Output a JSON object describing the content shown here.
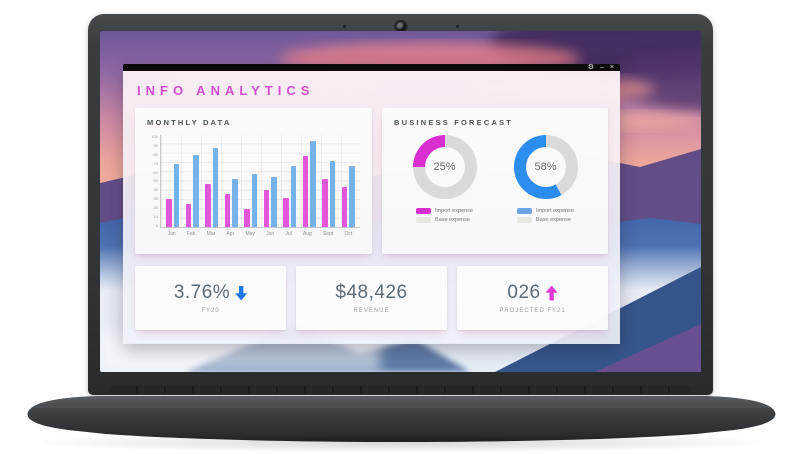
{
  "window": {
    "app_title": "INFO ANALYTICS",
    "title_bar": {
      "controls": [
        {
          "name": "settings",
          "glyph": "⚙"
        },
        {
          "name": "minimize",
          "glyph": "–"
        },
        {
          "name": "close",
          "glyph": "×"
        }
      ]
    }
  },
  "colors": {
    "accent_pink": "#d44fd0",
    "bar_pink": "#e257da",
    "bar_blue": "#74b2e9",
    "donut_pink": "#d92ed0",
    "donut_blue": "#2b8df0",
    "donut_track": "#dadada",
    "legend_gray": "#e9e7e1",
    "arrow_blue": "#2277e8",
    "arrow_pink": "#e03ad5",
    "stat_text": "#5c6b78"
  },
  "chart_data": [
    {
      "type": "bar",
      "title": "MONTHLY DATA",
      "categories": [
        "Jan",
        "Feb",
        "Mar",
        "Apr",
        "May",
        "Jun",
        "Jul",
        "Aug",
        "Sept",
        "Oct"
      ],
      "series": [
        {
          "name": "pink",
          "color": "#e257da",
          "values": [
            30,
            25,
            47,
            36,
            20,
            40,
            32,
            77,
            52,
            43
          ]
        },
        {
          "name": "blue",
          "color": "#74b2e9",
          "values": [
            68,
            78,
            86,
            52,
            58,
            54,
            66,
            93,
            72,
            66
          ]
        }
      ],
      "xlabel": "",
      "ylabel": "",
      "ylim": [
        0,
        100
      ],
      "yticks": [
        0,
        10,
        20,
        30,
        40,
        50,
        60,
        70,
        80,
        90,
        100
      ],
      "grid": true,
      "legend_position": "none"
    },
    {
      "type": "pie",
      "title": "BUSINESS FORECAST",
      "donuts": [
        {
          "value": 25,
          "label": "25%",
          "color": "#d92ed0",
          "track": "#dadada",
          "legend": [
            {
              "label": "Import expense",
              "color": "#d92ed0"
            },
            {
              "label": "Base expense",
              "color": "#e9e7e1"
            }
          ]
        },
        {
          "value": 58,
          "label": "58%",
          "color": "#2b8df0",
          "track": "#dadada",
          "legend": [
            {
              "label": "Import expense",
              "color": "#6ba5e5"
            },
            {
              "label": "Base expense",
              "color": "#e9e7e1"
            }
          ]
        }
      ]
    }
  ],
  "panels": {
    "monthly": {
      "title": "MONTHLY DATA"
    },
    "forecast": {
      "title": "BUSINESS FORECAST"
    }
  },
  "stats": [
    {
      "value": "3.76%",
      "arrow": "down",
      "arrow_color": "#2277e8",
      "label": "FY20"
    },
    {
      "value": "$48,426",
      "arrow": "none",
      "arrow_color": "",
      "label": "REVENUE"
    },
    {
      "value": "026",
      "arrow": "up",
      "arrow_color": "#e03ad5",
      "label": "PROJECTED FY21"
    }
  ]
}
